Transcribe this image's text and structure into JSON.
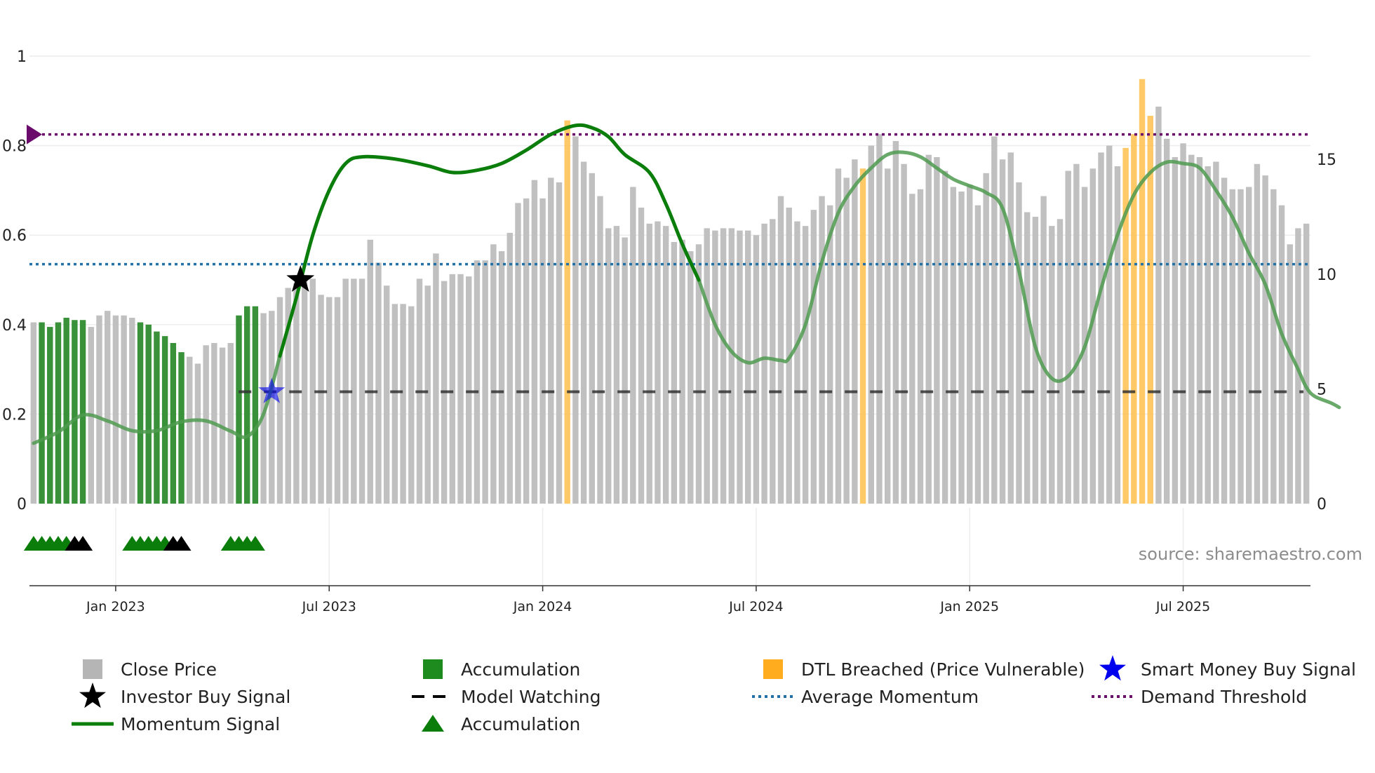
{
  "chart_data": {
    "type": "bar",
    "source_label": "source: sharemaestro.com",
    "left_axis": {
      "ticks": [
        0,
        0.2,
        0.4,
        0.6,
        0.8,
        1
      ],
      "tick_labels": [
        "0",
        "0.2",
        "0.4",
        "0.6",
        "0.8",
        "1"
      ],
      "range": [
        0,
        1
      ]
    },
    "right_axis": {
      "ticks": [
        0,
        5,
        10,
        15
      ],
      "tick_labels": [
        "0",
        "5",
        "10",
        "15"
      ],
      "range": [
        0,
        19.5
      ]
    },
    "x_axis": {
      "tick_labels": [
        "Jan 2023",
        "Jul 2023",
        "Jan 2024",
        "Jul 2024",
        "Jan 2025",
        "Jul 2025"
      ],
      "tick_weeks": [
        10,
        36,
        62,
        88,
        114,
        140
      ]
    },
    "colors": {
      "close": "#c0c0c0",
      "accumulation": "#2e8b2e",
      "dtl": "#ffc04c",
      "momentum": "#0a7d0a",
      "momentum_faded": "#4f9a4f",
      "average": "#2171a8",
      "demand": "#6a0a6a",
      "model": "#333333",
      "smart_money": "#0000ee",
      "investor": "#000000"
    },
    "close_values": [
      7.9,
      7.9,
      7.7,
      7.9,
      8.1,
      8.0,
      8.0,
      7.7,
      8.2,
      8.4,
      8.2,
      8.2,
      8.1,
      7.9,
      7.8,
      7.5,
      7.3,
      7.0,
      6.6,
      6.4,
      6.1,
      6.9,
      7.0,
      6.8,
      7.0,
      8.2,
      8.6,
      8.6,
      8.3,
      8.4,
      9.0,
      9.4,
      9.6,
      9.7,
      9.8,
      9.1,
      9.0,
      9.0,
      9.8,
      9.8,
      9.8,
      11.5,
      10.5,
      9.5,
      8.7,
      8.7,
      8.6,
      9.8,
      9.5,
      10.9,
      9.7,
      10.0,
      10.0,
      9.9,
      10.6,
      10.6,
      11.3,
      11.0,
      11.8,
      13.1,
      13.3,
      14.1,
      13.3,
      14.2,
      14.0,
      16.7,
      16.0,
      14.9,
      14.4,
      13.4,
      12.0,
      12.1,
      11.6,
      13.8,
      12.9,
      12.2,
      12.3,
      12.1,
      11.4,
      11.5,
      11.0,
      11.3,
      12.0,
      11.9,
      12.0,
      12.0,
      11.9,
      11.9,
      11.7,
      12.2,
      12.4,
      13.4,
      12.9,
      12.3,
      12.1,
      12.8,
      13.4,
      13.0,
      14.6,
      14.2,
      15.0,
      14.6,
      15.6,
      16.1,
      14.6,
      15.8,
      14.8,
      13.5,
      13.7,
      15.2,
      15.1,
      14.5,
      13.8,
      13.6,
      13.9,
      13.0,
      14.4,
      16.0,
      15.0,
      15.3,
      14.0,
      12.7,
      12.5,
      13.4,
      12.1,
      12.4,
      14.5,
      14.8,
      13.8,
      14.6,
      15.3,
      15.6,
      14.7,
      15.5,
      16.1,
      18.5,
      16.9,
      17.3,
      15.9,
      15.1,
      15.7,
      15.2,
      15.1,
      14.7,
      14.9,
      14.2,
      13.7,
      13.7,
      13.8,
      14.8,
      14.3,
      13.7,
      13.0,
      11.3,
      12.0,
      12.2
    ],
    "accumulation_weeks": [
      1,
      2,
      3,
      4,
      5,
      6,
      13,
      14,
      15,
      16,
      17,
      18,
      25,
      26,
      27
    ],
    "dtl_weeks": [
      65,
      101,
      133,
      134,
      135,
      136
    ],
    "momentum_points": [
      [
        0,
        0.135
      ],
      [
        3,
        0.16
      ],
      [
        6,
        0.198
      ],
      [
        9,
        0.185
      ],
      [
        12,
        0.163
      ],
      [
        15,
        0.163
      ],
      [
        18,
        0.183
      ],
      [
        21,
        0.185
      ],
      [
        24,
        0.162
      ],
      [
        26,
        0.15
      ],
      [
        28,
        0.2
      ],
      [
        30,
        0.33
      ],
      [
        32,
        0.46
      ],
      [
        34,
        0.6
      ],
      [
        36,
        0.7
      ],
      [
        38,
        0.76
      ],
      [
        40,
        0.775
      ],
      [
        44,
        0.77
      ],
      [
        48,
        0.755
      ],
      [
        51,
        0.74
      ],
      [
        54,
        0.745
      ],
      [
        57,
        0.76
      ],
      [
        60,
        0.79
      ],
      [
        63,
        0.825
      ],
      [
        66,
        0.845
      ],
      [
        68,
        0.84
      ],
      [
        70,
        0.82
      ],
      [
        72,
        0.78
      ],
      [
        75,
        0.74
      ],
      [
        77,
        0.67
      ],
      [
        79,
        0.58
      ],
      [
        81,
        0.5
      ],
      [
        83,
        0.4
      ],
      [
        85,
        0.34
      ],
      [
        87,
        0.315
      ],
      [
        89,
        0.325
      ],
      [
        91,
        0.32
      ],
      [
        92,
        0.325
      ],
      [
        94,
        0.4
      ],
      [
        96,
        0.54
      ],
      [
        98,
        0.65
      ],
      [
        100,
        0.71
      ],
      [
        102,
        0.75
      ],
      [
        104,
        0.78
      ],
      [
        106,
        0.785
      ],
      [
        108,
        0.775
      ],
      [
        110,
        0.75
      ],
      [
        112,
        0.725
      ],
      [
        114,
        0.71
      ],
      [
        116,
        0.695
      ],
      [
        118,
        0.66
      ],
      [
        120,
        0.52
      ],
      [
        122,
        0.35
      ],
      [
        124,
        0.28
      ],
      [
        126,
        0.285
      ],
      [
        128,
        0.35
      ],
      [
        130,
        0.48
      ],
      [
        132,
        0.6
      ],
      [
        134,
        0.69
      ],
      [
        136,
        0.74
      ],
      [
        138,
        0.763
      ],
      [
        140,
        0.76
      ],
      [
        142,
        0.75
      ],
      [
        144,
        0.7
      ],
      [
        146,
        0.64
      ],
      [
        148,
        0.56
      ],
      [
        150,
        0.49
      ],
      [
        152,
        0.38
      ],
      [
        154,
        0.3
      ],
      [
        155,
        0.26
      ],
      [
        156,
        0.24
      ],
      [
        158,
        0.225
      ],
      [
        159,
        0.215
      ]
    ],
    "momentum_bold_range": [
      30,
      81
    ],
    "average_momentum": 0.535,
    "demand_threshold": 0.825,
    "model_watching": {
      "value": 0.25,
      "from_week": 26
    },
    "smart_money_signal": {
      "week": 29,
      "value": 0.25
    },
    "investor_signal": {
      "week": 32.5,
      "value": 0.5
    },
    "triangles_green": [
      0,
      1,
      2,
      3,
      4,
      12,
      13,
      14,
      15,
      16,
      24,
      25,
      26,
      27
    ],
    "triangles_black": [
      5,
      6,
      17,
      18
    ],
    "legend": [
      {
        "label": "Close Price",
        "symbol": "square",
        "color": "#b5b5b5"
      },
      {
        "label": "Investor Buy Signal",
        "symbol": "star",
        "color": "#000000"
      },
      {
        "label": "Momentum Signal",
        "symbol": "line",
        "color": "#0a7d0a"
      },
      {
        "label": "Accumulation",
        "symbol": "square",
        "color": "#1e8b1e"
      },
      {
        "label": "Model Watching",
        "symbol": "dash",
        "color": "#000000"
      },
      {
        "label": "Accumulation",
        "symbol": "triangle",
        "color": "#0a7d0a"
      },
      {
        "label": "DTL Breached (Price Vulnerable)",
        "symbol": "square",
        "color": "#ffad1f"
      },
      {
        "label": "Average Momentum",
        "symbol": "dot",
        "color": "#2171a8"
      },
      {
        "label": "Smart Money Buy Signal",
        "symbol": "star",
        "color": "#0000ee"
      },
      {
        "label": "Demand Threshold",
        "symbol": "dot",
        "color": "#6a0a6a"
      }
    ]
  }
}
